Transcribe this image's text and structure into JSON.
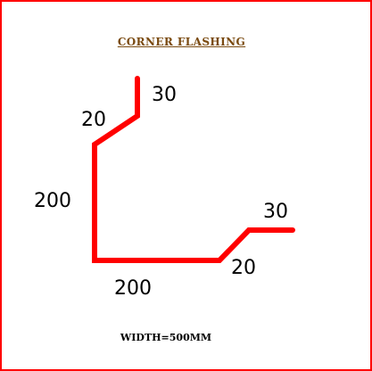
{
  "title": "CORNER FLASHING",
  "footer": "WIDTH=500MM",
  "dimensions": {
    "top_lip": "30",
    "top_bend": "20",
    "left_side": "200",
    "bottom_side": "200",
    "right_bend": "20",
    "right_lip": "30"
  },
  "colors": {
    "border": "#ff0000",
    "profile": "#ff0000",
    "title": "#7a4a10"
  }
}
